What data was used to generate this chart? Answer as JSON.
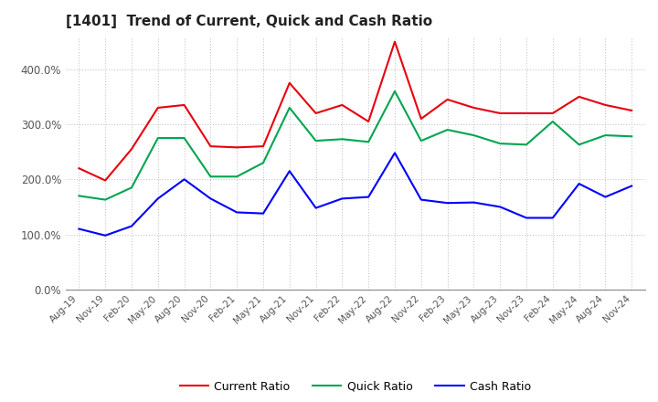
{
  "title": "[1401]  Trend of Current, Quick and Cash Ratio",
  "labels": [
    "Aug-19",
    "Nov-19",
    "Feb-20",
    "May-20",
    "Aug-20",
    "Nov-20",
    "Feb-21",
    "May-21",
    "Aug-21",
    "Nov-21",
    "Feb-22",
    "May-22",
    "Aug-22",
    "Nov-22",
    "Feb-23",
    "May-23",
    "Aug-23",
    "Nov-23",
    "Feb-24",
    "May-24",
    "Aug-24",
    "Nov-24"
  ],
  "current_ratio": [
    220,
    198,
    255,
    330,
    335,
    260,
    258,
    260,
    375,
    320,
    335,
    305,
    450,
    310,
    345,
    330,
    320,
    320,
    320,
    350,
    335,
    325
  ],
  "quick_ratio": [
    170,
    163,
    185,
    275,
    275,
    205,
    205,
    230,
    330,
    270,
    273,
    268,
    360,
    270,
    290,
    280,
    265,
    263,
    305,
    263,
    280,
    278
  ],
  "cash_ratio": [
    110,
    98,
    115,
    165,
    200,
    165,
    140,
    138,
    215,
    148,
    165,
    168,
    248,
    163,
    157,
    158,
    150,
    130,
    130,
    192,
    168,
    188
  ],
  "ylim": [
    0,
    460
  ],
  "yticks": [
    0,
    100,
    200,
    300,
    400
  ],
  "line_colors": [
    "#e8000d",
    "#00a550",
    "#0000ff"
  ],
  "legend_labels": [
    "Current Ratio",
    "Quick Ratio",
    "Cash Ratio"
  ],
  "background_color": "#ffffff",
  "grid_color": "#bbbbbb"
}
